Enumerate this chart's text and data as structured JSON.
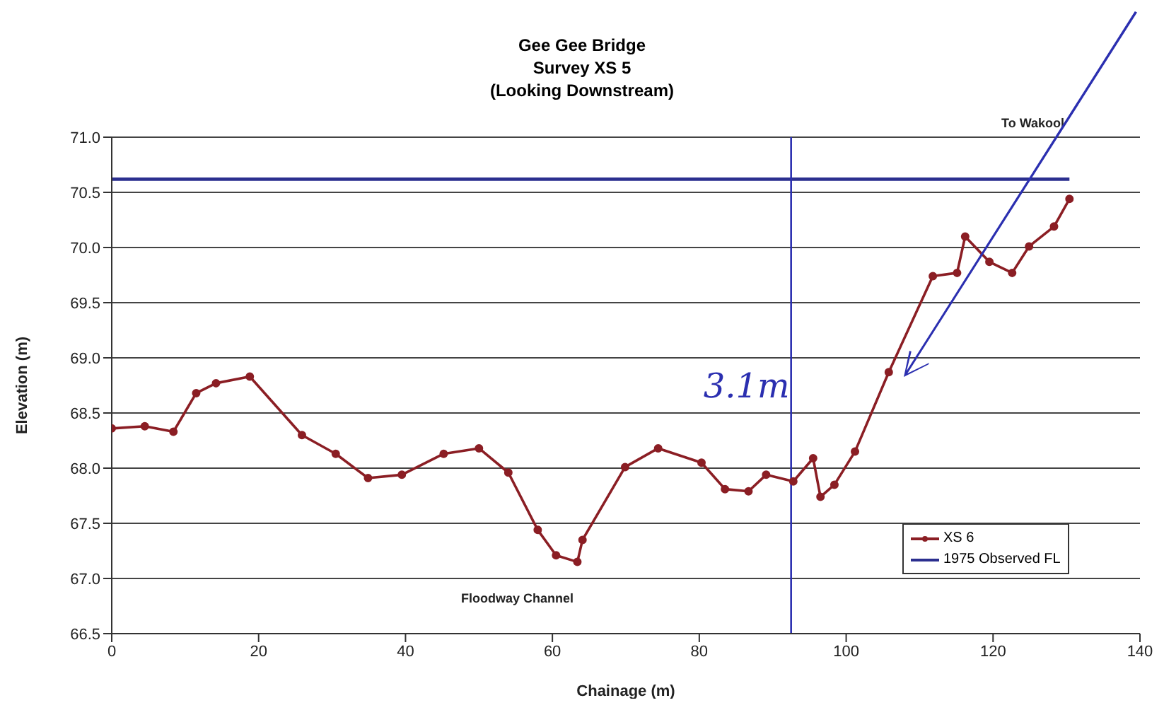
{
  "chart_data": {
    "type": "line",
    "title": "Gee Gee Bridge\nSurvey XS 5\n(Looking Downstream)",
    "xlabel": "Chainage (m)",
    "ylabel": "Elevation (m)",
    "xlim": [
      0,
      140
    ],
    "xticks": [
      0,
      20,
      40,
      60,
      80,
      100,
      120,
      140
    ],
    "ylim": [
      66.5,
      71.0
    ],
    "yticks": [
      {
        "value": 66.5,
        "label": "66.5"
      },
      {
        "value": 67,
        "label": "67.0"
      },
      {
        "value": 67.5,
        "label": "67.5"
      },
      {
        "value": 68,
        "label": "68.0"
      },
      {
        "value": 68.5,
        "label": "68.5"
      },
      {
        "value": 69,
        "label": "69.0"
      },
      {
        "value": 69.5,
        "label": "69.5"
      },
      {
        "value": 70,
        "label": "70.0"
      },
      {
        "value": 70.5,
        "label": "70.5"
      },
      {
        "value": 71,
        "label": "71.0"
      }
    ],
    "grid": "y",
    "legend": "bottom right",
    "marker": "circle",
    "line_style": "solid",
    "series": [
      {
        "name": "XS 6",
        "color": "#8b1e24",
        "x": [
          0,
          4.5,
          8.4,
          11.5,
          14.2,
          18.8,
          25.9,
          30.5,
          34.9,
          39.5,
          45.2,
          50.0,
          54.0,
          58.0,
          60.5,
          63.4,
          64.1,
          69.9,
          74.4,
          80.3,
          83.5,
          86.7,
          89.1,
          92.8,
          95.5,
          96.5,
          98.4,
          101.2,
          105.8,
          111.8,
          115.1,
          116.2,
          119.5,
          122.6,
          124.9,
          128.3,
          130.4
        ],
        "values": [
          68.36,
          68.38,
          68.33,
          68.68,
          68.77,
          68.83,
          68.3,
          68.13,
          67.91,
          67.94,
          68.13,
          68.18,
          67.96,
          67.44,
          67.21,
          67.15,
          67.35,
          68.01,
          68.18,
          68.05,
          67.81,
          67.79,
          67.94,
          67.88,
          68.09,
          67.74,
          67.85,
          68.15,
          68.87,
          69.74,
          69.77,
          70.1,
          69.87,
          69.77,
          70.01,
          70.19,
          70.44
        ]
      },
      {
        "name": "1975 Observed FL",
        "color": "#2b2f8f",
        "marker": "none",
        "x": [
          0,
          130.4
        ],
        "values": [
          70.62,
          70.62
        ]
      }
    ],
    "ref_lines": [
      {
        "axis": "x",
        "value": 92.5,
        "label": "3.1m",
        "color": "#2b2fb0"
      }
    ],
    "annotations": [
      "To Wakool",
      "Floodway Channel"
    ]
  }
}
